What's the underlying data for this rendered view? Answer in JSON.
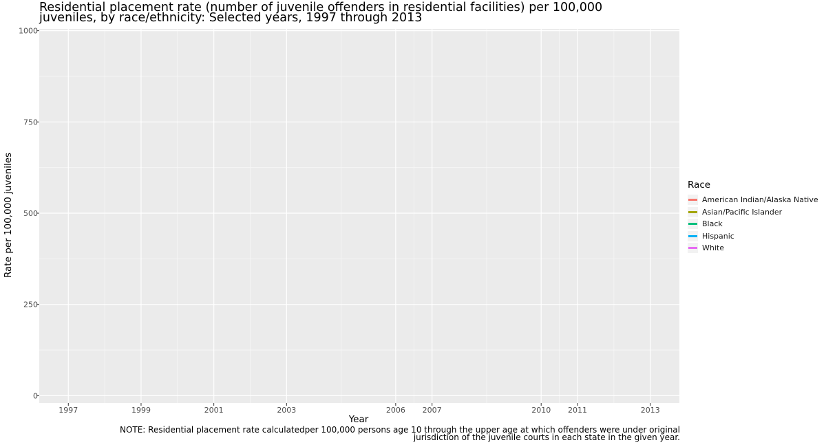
{
  "chart_data": {
    "type": "line",
    "title": "Residential placement rate (number of juvenile offenders in residential facilities) per 100,000 juveniles, by race/ethnicity: Selected years, 1997 through 2013",
    "title_lines": [
      "Residential placement rate (number of juvenile offenders in residential facilities) per 100,000",
      "juveniles, by race/ethnicity: Selected years, 1997 through 2013"
    ],
    "xlabel": "Year",
    "ylabel": "Rate per 100,000 juveniles",
    "x_ticks": [
      "1997",
      "1999",
      "2001",
      "2003",
      "2006",
      "2007",
      "2010",
      "2011",
      "2013"
    ],
    "y_ticks": [
      "0",
      "250",
      "500",
      "750",
      "1000"
    ],
    "xlim": [
      1996.2,
      2013.8
    ],
    "ylim": [
      -20,
      1005
    ],
    "legend_title": "Race",
    "legend_position": "right",
    "grid": true,
    "series": [
      {
        "name": "American Indian/Alaska Native",
        "color": "#F8766D",
        "values": []
      },
      {
        "name": "Asian/Pacific Islander",
        "color": "#A3A500",
        "values": []
      },
      {
        "name": "Black",
        "color": "#00BF7D",
        "values": []
      },
      {
        "name": "Hispanic",
        "color": "#00B0F6",
        "values": []
      },
      {
        "name": "White",
        "color": "#E76BF3",
        "values": []
      }
    ],
    "note_lines": [
      "NOTE: Residential placement rate calculatedper 100,000 persons age 10 through the upper age at which offenders were under original",
      "jurisdiction of the juvenile courts in each state in the given year."
    ]
  },
  "colors": {
    "panel_bg": "#EBEBEB",
    "grid": "#FFFFFF",
    "axis_text": "#4D4D4D"
  }
}
